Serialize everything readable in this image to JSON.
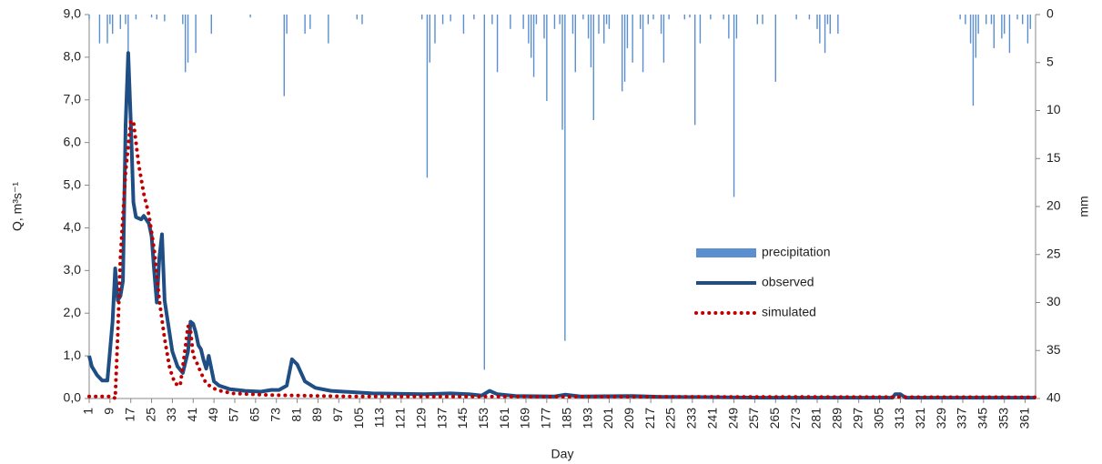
{
  "chart_data": {
    "type": "line",
    "x_label": "Day",
    "y_label": "Q, m³s⁻¹",
    "y2_label": "mm",
    "xlim": [
      1,
      365
    ],
    "xticks": [
      1,
      9,
      17,
      25,
      33,
      41,
      49,
      57,
      65,
      73,
      81,
      89,
      97,
      105,
      113,
      121,
      129,
      137,
      145,
      153,
      161,
      169,
      177,
      185,
      193,
      201,
      209,
      217,
      225,
      233,
      241,
      249,
      257,
      265,
      273,
      281,
      289,
      297,
      305,
      313,
      321,
      329,
      337,
      345,
      353,
      361
    ],
    "ylim": [
      0,
      9
    ],
    "yticks": [
      {
        "value": 0,
        "label": "0,0"
      },
      {
        "value": 1,
        "label": "1,0"
      },
      {
        "value": 2,
        "label": "2,0"
      },
      {
        "value": 3,
        "label": "3,0"
      },
      {
        "value": 4,
        "label": "4,0"
      },
      {
        "value": 5,
        "label": "5,0"
      },
      {
        "value": 6,
        "label": "6,0"
      },
      {
        "value": 7,
        "label": "7,0"
      },
      {
        "value": 8,
        "label": "8,0"
      },
      {
        "value": 9,
        "label": "9,0"
      }
    ],
    "y2lim": [
      0,
      40
    ],
    "y2ticks": [
      0,
      5,
      10,
      15,
      20,
      25,
      30,
      35,
      40
    ],
    "y2_inverted": true,
    "grid": false,
    "legend": "center-right",
    "series": [
      {
        "name": "precipitation",
        "type": "bar",
        "axis": "y2",
        "color": "#5b8fcf",
        "x": [
          1,
          5,
          8,
          9,
          10,
          13,
          15,
          16,
          19,
          25,
          27,
          30,
          37,
          38,
          39,
          42,
          48,
          63,
          76,
          77,
          84,
          86,
          93,
          104,
          106,
          129,
          131,
          132,
          134,
          137,
          140,
          145,
          149,
          153,
          156,
          158,
          163,
          168,
          170,
          171,
          172,
          173,
          176,
          177,
          180,
          182,
          183,
          184,
          187,
          188,
          191,
          193,
          194,
          195,
          197,
          199,
          200,
          201,
          206,
          207,
          208,
          210,
          213,
          214,
          216,
          218,
          221,
          222,
          224,
          230,
          232,
          234,
          236,
          240,
          245,
          247,
          249,
          250,
          258,
          260,
          265,
          273,
          278,
          281,
          282,
          284,
          285,
          286,
          289,
          336,
          338,
          340,
          341,
          342,
          343,
          346,
          348,
          349,
          352,
          353,
          355,
          358,
          360,
          362,
          363
        ],
        "values": [
          0.5,
          3,
          3,
          1,
          2,
          1.5,
          1,
          4,
          0.5,
          0.3,
          0.5,
          0.7,
          1,
          6,
          5,
          4,
          2,
          0.3,
          8.5,
          2,
          2,
          1.5,
          3,
          0.5,
          1,
          0.5,
          17,
          5,
          3,
          1,
          0.7,
          2,
          0.5,
          37,
          1,
          6,
          1.5,
          1.5,
          3,
          4.5,
          6.5,
          1,
          2.5,
          9,
          1.5,
          1,
          12,
          34,
          2,
          6,
          0.5,
          2.5,
          5.5,
          11,
          2,
          3,
          1,
          1.5,
          8,
          7,
          3.5,
          5,
          1.5,
          6,
          1,
          0.5,
          2,
          5,
          0.5,
          0.5,
          0.3,
          11.5,
          3,
          0.5,
          0.5,
          2.5,
          19,
          2.5,
          1,
          1,
          7,
          0.5,
          0.5,
          1.5,
          3,
          4,
          1,
          2,
          2,
          0.5,
          1,
          3,
          9.5,
          4.5,
          2,
          1,
          1,
          3.5,
          2.5,
          2,
          4,
          0.5,
          1,
          3,
          1.5
        ]
      },
      {
        "name": "observed",
        "type": "line",
        "color": "#1f4e85",
        "x": [
          1,
          2,
          4,
          6,
          8,
          10,
          11,
          12,
          13,
          14,
          15,
          16,
          17,
          18,
          19,
          21,
          22,
          24,
          25,
          26,
          27,
          28,
          29,
          30,
          31,
          33,
          35,
          37,
          39,
          40,
          41,
          42,
          43,
          44,
          45,
          46,
          47,
          49,
          51,
          55,
          61,
          67,
          71,
          74,
          77,
          79,
          81,
          84,
          88,
          94,
          110,
          130,
          140,
          147,
          152,
          155,
          158,
          165,
          180,
          184,
          190,
          210,
          220,
          260,
          310,
          311,
          313,
          315,
          365
        ],
        "values": [
          1.0,
          0.75,
          0.55,
          0.42,
          0.42,
          1.8,
          3.05,
          2.3,
          2.4,
          2.75,
          6.4,
          8.1,
          6.5,
          4.6,
          4.25,
          4.2,
          4.28,
          4.1,
          3.8,
          3.0,
          2.25,
          3.3,
          3.85,
          2.3,
          1.9,
          1.1,
          0.75,
          0.6,
          1.1,
          1.8,
          1.75,
          1.55,
          1.25,
          1.15,
          0.9,
          0.7,
          1.0,
          0.4,
          0.3,
          0.22,
          0.18,
          0.16,
          0.2,
          0.2,
          0.3,
          0.92,
          0.8,
          0.4,
          0.25,
          0.18,
          0.12,
          0.1,
          0.12,
          0.1,
          0.07,
          0.18,
          0.1,
          0.06,
          0.05,
          0.09,
          0.05,
          0.06,
          0.04,
          0.02,
          0.02,
          0.1,
          0.1,
          0.02,
          0.02
        ]
      },
      {
        "name": "simulated",
        "type": "line",
        "dotted": true,
        "color": "#c00000",
        "x": [
          1,
          10,
          11,
          12,
          13,
          15,
          17,
          18,
          20,
          22,
          24,
          26,
          28,
          30,
          32,
          34,
          36,
          38,
          39,
          40,
          41,
          42,
          44,
          46,
          50,
          56,
          70,
          100,
          365
        ],
        "values": [
          0.05,
          0.05,
          0.0,
          1.5,
          3.3,
          5.3,
          6.5,
          6.5,
          5.5,
          4.8,
          4.3,
          3.5,
          2.3,
          1.4,
          0.7,
          0.35,
          0.3,
          1.2,
          1.7,
          1.6,
          1.0,
          0.9,
          0.6,
          0.35,
          0.2,
          0.12,
          0.08,
          0.05,
          0.03
        ]
      }
    ]
  }
}
